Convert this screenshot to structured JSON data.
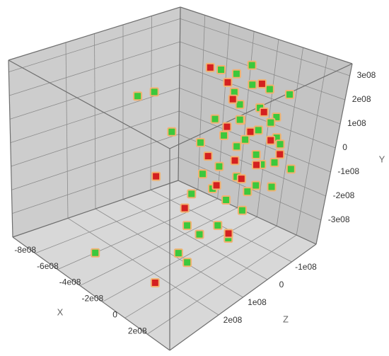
{
  "chart_data": {
    "type": "scatter3d",
    "x_label": "X",
    "y_label": "Y",
    "z_label": "Z",
    "xlim": [
      -1000000000.0,
      400000000.0
    ],
    "ylim": [
      -400000000.0,
      350000000.0
    ],
    "zlim": [
      -200000000.0,
      400000000.0
    ],
    "xticks": [
      {
        "value": -800000000.0,
        "label": "-8e08"
      },
      {
        "value": -600000000.0,
        "label": "-6e08"
      },
      {
        "value": -400000000.0,
        "label": "-4e08"
      },
      {
        "value": -200000000.0,
        "label": "-2e08"
      },
      0,
      {
        "value": 200000000.0,
        "label": "2e08"
      }
    ],
    "yticks": [
      {
        "value": -300000000.0,
        "label": "-3e08"
      },
      {
        "value": -200000000.0,
        "label": "-2e08"
      },
      {
        "value": -100000000.0,
        "label": "-1e08"
      },
      0,
      {
        "value": 100000000.0,
        "label": "1e08"
      },
      {
        "value": 200000000.0,
        "label": "2e08"
      },
      {
        "value": 300000000.0,
        "label": "3e08"
      }
    ],
    "zticks": [
      {
        "value": -100000000.0,
        "label": "-1e08"
      },
      0,
      {
        "value": 100000000.0,
        "label": "1e08"
      },
      {
        "value": 200000000.0,
        "label": "2e08"
      }
    ],
    "grid": true,
    "series": [
      {
        "color": "#3cc83c",
        "x": [
          -320000000.0,
          -260000000.0,
          -210000000.0,
          -750000000.0,
          -680000000.0,
          -150000000.0,
          -100000000.0,
          -50000000.0,
          0,
          50000000.0,
          100000000.0,
          150000000.0,
          -200000000.0,
          -120000000.0,
          -60000000.0,
          20000000.0,
          80000000.0,
          130000000.0,
          -240000000.0,
          -160000000.0,
          -90000000.0,
          -20000000.0,
          40000000.0,
          100000000.0,
          160000000.0,
          -180000000.0,
          -110000000.0,
          -40000000.0,
          30000000.0,
          90000000.0,
          -220000000.0,
          -130000000.0,
          -70000000.0,
          0,
          60000000.0,
          120000000.0,
          -150000000.0,
          -80000000.0,
          10000000.0,
          70000000.0,
          -500000000.0,
          -100000000.0,
          50000000.0,
          -350000000.0,
          180000000.0
        ],
        "y": [
          270000000.0,
          250000000.0,
          280000000.0,
          120000000.0,
          140000000.0,
          220000000.0,
          240000000.0,
          200000000.0,
          230000000.0,
          190000000.0,
          210000000.0,
          160000000.0,
          120000000.0,
          100000000.0,
          130000000.0,
          90000000.0,
          110000000.0,
          60000000.0,
          30000000.0,
          50000000.0,
          20000000.0,
          40000000.0,
          -10000000.0,
          10000000.0,
          -30000000.0,
          -80000000.0,
          -50000000.0,
          -100000000.0,
          -70000000.0,
          -120000000.0,
          -160000000.0,
          -140000000.0,
          -190000000.0,
          -170000000.0,
          -210000000.0,
          -150000000.0,
          -250000000.0,
          -280000000.0,
          -240000000.0,
          -290000000.0,
          -350000000.0,
          -320000000.0,
          -300000000.0,
          80000000.0,
          -90000000.0
        ],
        "z": [
          -60000000.0,
          -90000000.0,
          -120000000.0,
          50000000.0,
          20000000.0,
          -40000000.0,
          -80000000.0,
          -20000000.0,
          -100000000.0,
          -50000000.0,
          -130000000.0,
          -70000000.0,
          0,
          -60000000.0,
          -30000000.0,
          -110000000.0,
          -40000000.0,
          -90000000.0,
          30000000.0,
          -20000000.0,
          -70000000.0,
          -10000000.0,
          -60000000.0,
          -120000000.0,
          -80000000.0,
          40000000.0,
          10000000.0,
          -30000000.0,
          -90000000.0,
          -50000000.0,
          60000000.0,
          20000000.0,
          -10000000.0,
          -60000000.0,
          -20000000.0,
          -100000000.0,
          100000000.0,
          80000000.0,
          50000000.0,
          30000000.0,
          300000000.0,
          150000000.0,
          180000000.0,
          90000000.0,
          -140000000.0
        ]
      },
      {
        "color": "#d42020",
        "x": [
          -340000000.0,
          -280000000.0,
          -180000000.0,
          -90000000.0,
          20000000.0,
          -140000000.0,
          -30000000.0,
          60000000.0,
          -190000000.0,
          -70000000.0,
          30000000.0,
          110000000.0,
          -120000000.0,
          -20000000.0,
          -400000000.0,
          -250000000.0,
          90000000.0,
          -50000000.0
        ],
        "y": [
          290000000.0,
          220000000.0,
          180000000.0,
          230000000.0,
          150000000.0,
          90000000.0,
          70000000.0,
          30000000.0,
          -20000000.0,
          -40000000.0,
          -60000000.0,
          -30000000.0,
          -130000000.0,
          -110000000.0,
          -100000000.0,
          -220000000.0,
          -260000000.0,
          -360000000.0
        ],
        "z": [
          -30000000.0,
          -70000000.0,
          -50000000.0,
          -110000000.0,
          -80000000.0,
          -20000000.0,
          -60000000.0,
          -100000000.0,
          20000000.0,
          -30000000.0,
          -70000000.0,
          -120000000.0,
          10000000.0,
          -40000000.0,
          120000000.0,
          70000000.0,
          40000000.0,
          260000000.0
        ]
      }
    ]
  }
}
